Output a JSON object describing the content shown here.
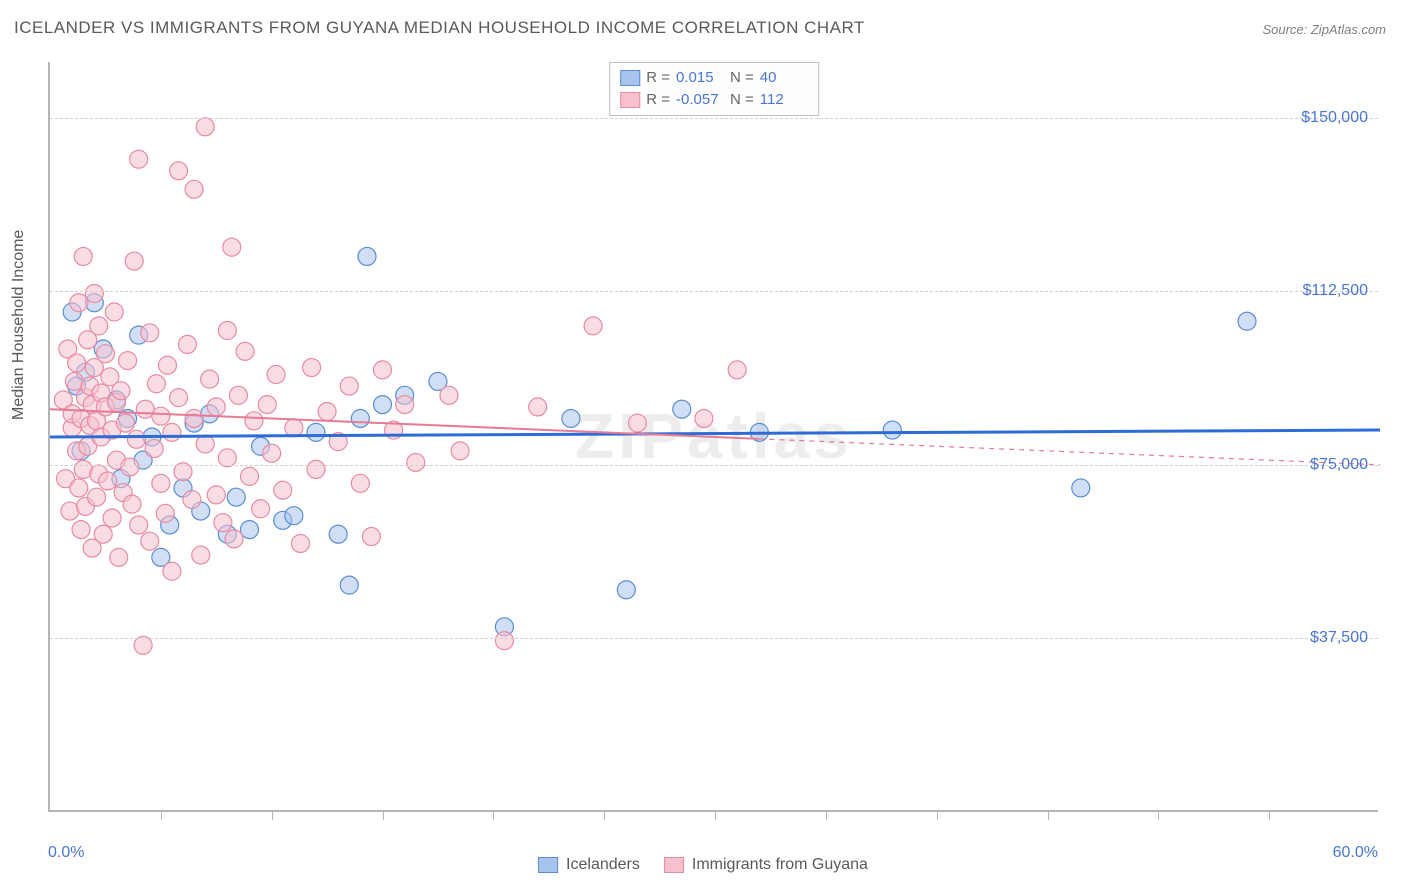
{
  "title": "ICELANDER VS IMMIGRANTS FROM GUYANA MEDIAN HOUSEHOLD INCOME CORRELATION CHART",
  "source": "Source: ZipAtlas.com",
  "watermark": "ZIPatlas",
  "y_axis_label": "Median Household Income",
  "x_axis": {
    "min_label": "0.0%",
    "max_label": "60.0%",
    "min": 0,
    "max": 60,
    "tick_step": 5
  },
  "y_axis": {
    "min": 0,
    "max": 162000,
    "gridlines": [
      37500,
      75000,
      112500,
      150000
    ],
    "tick_labels": [
      "$37,500",
      "$75,000",
      "$112,500",
      "$150,000"
    ]
  },
  "colors": {
    "blue_fill": "#a9c4ec",
    "blue_stroke": "#5b8dd6",
    "pink_fill": "#f6c1cd",
    "pink_stroke": "#e98ba1",
    "trend_blue": "#2d6cd6",
    "trend_pink": "#e77a95",
    "text": "#5a5a5a",
    "value": "#4a76d8",
    "grid": "#d0d0d0",
    "axis": "#b5b5b5",
    "background": "#ffffff"
  },
  "marker": {
    "radius": 9,
    "opacity": 0.55,
    "stroke_width": 1.2
  },
  "series": [
    {
      "name": "Icelanders",
      "color": "blue",
      "stats": {
        "R_label": "R =",
        "R": "0.015",
        "N_label": "N =",
        "N": "40"
      },
      "trend": {
        "y_at_xmin": 81000,
        "y_at_xmax": 82500,
        "dashed_from_x": null
      },
      "points": [
        [
          1.0,
          108000
        ],
        [
          1.2,
          92000
        ],
        [
          1.4,
          78000
        ],
        [
          1.6,
          95000
        ],
        [
          2.0,
          110000
        ],
        [
          2.4,
          100000
        ],
        [
          3.0,
          89000
        ],
        [
          3.2,
          72000
        ],
        [
          3.5,
          85000
        ],
        [
          4.0,
          103000
        ],
        [
          4.2,
          76000
        ],
        [
          4.6,
          81000
        ],
        [
          5.0,
          55000
        ],
        [
          5.4,
          62000
        ],
        [
          6.0,
          70000
        ],
        [
          6.5,
          84000
        ],
        [
          6.8,
          65000
        ],
        [
          7.2,
          86000
        ],
        [
          8.0,
          60000
        ],
        [
          8.4,
          68000
        ],
        [
          9.0,
          61000
        ],
        [
          9.5,
          79000
        ],
        [
          10.5,
          63000
        ],
        [
          11.0,
          64000
        ],
        [
          12.0,
          82000
        ],
        [
          13.0,
          60000
        ],
        [
          13.5,
          49000
        ],
        [
          14.0,
          85000
        ],
        [
          14.3,
          120000
        ],
        [
          15.0,
          88000
        ],
        [
          16.0,
          90000
        ],
        [
          17.5,
          93000
        ],
        [
          20.5,
          40000
        ],
        [
          23.5,
          85000
        ],
        [
          26.0,
          48000
        ],
        [
          28.5,
          87000
        ],
        [
          32.0,
          82000
        ],
        [
          38.0,
          82500
        ],
        [
          46.5,
          70000
        ],
        [
          54.0,
          106000
        ]
      ]
    },
    {
      "name": "Immigrants from Guyana",
      "color": "pink",
      "stats": {
        "R_label": "R =",
        "R": "-0.057",
        "N_label": "N =",
        "N": "112"
      },
      "trend": {
        "y_at_xmin": 87000,
        "y_at_xmax": 75000,
        "dashed_from_x": 32
      },
      "points": [
        [
          0.6,
          89000
        ],
        [
          0.7,
          72000
        ],
        [
          0.8,
          100000
        ],
        [
          0.9,
          65000
        ],
        [
          1.0,
          83000
        ],
        [
          1.0,
          86000
        ],
        [
          1.1,
          93000
        ],
        [
          1.2,
          78000
        ],
        [
          1.2,
          97000
        ],
        [
          1.3,
          110000
        ],
        [
          1.3,
          70000
        ],
        [
          1.4,
          61000
        ],
        [
          1.4,
          85000
        ],
        [
          1.5,
          120000
        ],
        [
          1.5,
          74000
        ],
        [
          1.6,
          66000
        ],
        [
          1.6,
          89500
        ],
        [
          1.7,
          102000
        ],
        [
          1.7,
          79000
        ],
        [
          1.8,
          92000
        ],
        [
          1.8,
          83500
        ],
        [
          1.9,
          57000
        ],
        [
          1.9,
          88000
        ],
        [
          2.0,
          112000
        ],
        [
          2.0,
          96000
        ],
        [
          2.1,
          68000
        ],
        [
          2.1,
          84500
        ],
        [
          2.2,
          105000
        ],
        [
          2.2,
          73000
        ],
        [
          2.3,
          90500
        ],
        [
          2.3,
          81000
        ],
        [
          2.4,
          60000
        ],
        [
          2.5,
          99000
        ],
        [
          2.5,
          87500
        ],
        [
          2.6,
          71500
        ],
        [
          2.7,
          94000
        ],
        [
          2.8,
          63500
        ],
        [
          2.8,
          82500
        ],
        [
          2.9,
          108000
        ],
        [
          3.0,
          76000
        ],
        [
          3.0,
          88500
        ],
        [
          3.1,
          55000
        ],
        [
          3.2,
          91000
        ],
        [
          3.3,
          69000
        ],
        [
          3.4,
          84000
        ],
        [
          3.5,
          97500
        ],
        [
          3.6,
          74500
        ],
        [
          3.7,
          66500
        ],
        [
          3.8,
          119000
        ],
        [
          3.9,
          80500
        ],
        [
          4.0,
          141000
        ],
        [
          4.0,
          62000
        ],
        [
          4.2,
          36000
        ],
        [
          4.3,
          87000
        ],
        [
          4.5,
          103500
        ],
        [
          4.5,
          58500
        ],
        [
          4.7,
          78500
        ],
        [
          4.8,
          92500
        ],
        [
          5.0,
          71000
        ],
        [
          5.0,
          85500
        ],
        [
          5.2,
          64500
        ],
        [
          5.3,
          96500
        ],
        [
          5.5,
          52000
        ],
        [
          5.5,
          82000
        ],
        [
          5.8,
          138500
        ],
        [
          5.8,
          89500
        ],
        [
          6.0,
          73500
        ],
        [
          6.2,
          101000
        ],
        [
          6.4,
          67500
        ],
        [
          6.5,
          134500
        ],
        [
          6.5,
          85000
        ],
        [
          6.8,
          55500
        ],
        [
          7.0,
          148000
        ],
        [
          7.0,
          79500
        ],
        [
          7.2,
          93500
        ],
        [
          7.5,
          68500
        ],
        [
          7.5,
          87500
        ],
        [
          7.8,
          62500
        ],
        [
          8.0,
          104000
        ],
        [
          8.0,
          76500
        ],
        [
          8.2,
          122000
        ],
        [
          8.3,
          59000
        ],
        [
          8.5,
          90000
        ],
        [
          8.8,
          99500
        ],
        [
          9.0,
          72500
        ],
        [
          9.2,
          84500
        ],
        [
          9.5,
          65500
        ],
        [
          9.8,
          88000
        ],
        [
          10.0,
          77500
        ],
        [
          10.2,
          94500
        ],
        [
          10.5,
          69500
        ],
        [
          11.0,
          83000
        ],
        [
          11.3,
          58000
        ],
        [
          11.8,
          96000
        ],
        [
          12.0,
          74000
        ],
        [
          12.5,
          86500
        ],
        [
          13.0,
          80000
        ],
        [
          13.5,
          92000
        ],
        [
          14.0,
          71000
        ],
        [
          14.5,
          59500
        ],
        [
          15.0,
          95500
        ],
        [
          15.5,
          82500
        ],
        [
          16.0,
          88000
        ],
        [
          16.5,
          75500
        ],
        [
          18.0,
          90000
        ],
        [
          18.5,
          78000
        ],
        [
          20.5,
          37000
        ],
        [
          22.0,
          87500
        ],
        [
          24.5,
          105000
        ],
        [
          26.5,
          84000
        ],
        [
          29.5,
          85000
        ],
        [
          31.0,
          95500
        ]
      ]
    }
  ],
  "bottom_legend": [
    {
      "label": "Icelanders",
      "color": "blue"
    },
    {
      "label": "Immigrants from Guyana",
      "color": "pink"
    }
  ]
}
